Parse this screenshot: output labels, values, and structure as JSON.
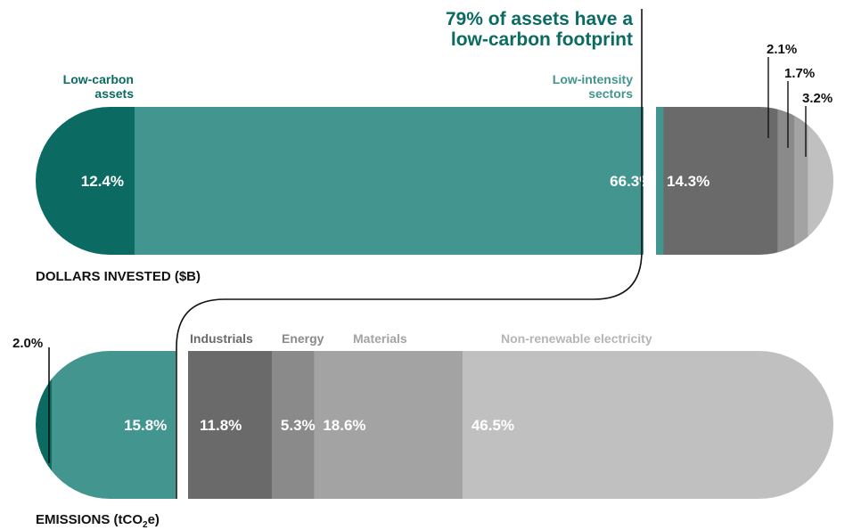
{
  "chart_data": {
    "type": "bar",
    "orientation": "horizontal-stacked",
    "annotation": [
      "79% of assets have a",
      "low-carbon footprint"
    ],
    "rows": [
      {
        "title": "DOLLARS INVESTED ($B)",
        "segments": [
          {
            "category": "Low-carbon assets",
            "label_lines": [
              "Low-carbon",
              "assets"
            ],
            "value": 12.4,
            "value_label": "12.4%",
            "color": "#0b6b62",
            "label_color": "#0b6b62"
          },
          {
            "category": "Low-intensity sectors",
            "label_lines": [
              "Low-intensity",
              "sectors"
            ],
            "value": 66.3,
            "value_label": "66.3%",
            "color": "#43958f",
            "label_color": "#43958f"
          },
          {
            "category": "Industrials",
            "value": 14.3,
            "value_label": "14.3%",
            "color": "#6a6a6a"
          },
          {
            "category": "Energy",
            "value": 2.1,
            "value_label": "2.1%",
            "color": "#8a8a8a"
          },
          {
            "category": "Materials",
            "value": 1.7,
            "value_label": "1.7%",
            "color": "#a3a3a3"
          },
          {
            "category": "Non-renewable electricity",
            "value": 3.2,
            "value_label": "3.2%",
            "color": "#c0c0c0"
          }
        ]
      },
      {
        "title_parts": [
          "EMISSIONS (tCO",
          "2",
          "e)"
        ],
        "segments": [
          {
            "category": "Low-carbon assets",
            "value": 2.0,
            "value_label": "2.0%",
            "color": "#0b6b62"
          },
          {
            "category": "Low-intensity sectors",
            "value": 15.8,
            "value_label": "15.8%",
            "color": "#43958f"
          },
          {
            "category": "Industrials",
            "label_lines": [
              "Industrials"
            ],
            "value": 11.8,
            "value_label": "11.8%",
            "color": "#6a6a6a",
            "label_color": "#6a6a6a"
          },
          {
            "category": "Energy",
            "label_lines": [
              "Energy"
            ],
            "value": 5.3,
            "value_label": "5.3%",
            "color": "#8a8a8a",
            "label_color": "#8a8a8a"
          },
          {
            "category": "Materials",
            "label_lines": [
              "Materials"
            ],
            "value": 18.6,
            "value_label": "18.6%",
            "color": "#a3a3a3",
            "label_color": "#a3a3a3"
          },
          {
            "category": "Non-renewable electricity",
            "label_lines": [
              "Non-renewable electricity"
            ],
            "value": 46.5,
            "value_label": "46.5%",
            "color": "#c0c0c0",
            "label_color": "#b5b5b5"
          }
        ]
      }
    ]
  }
}
